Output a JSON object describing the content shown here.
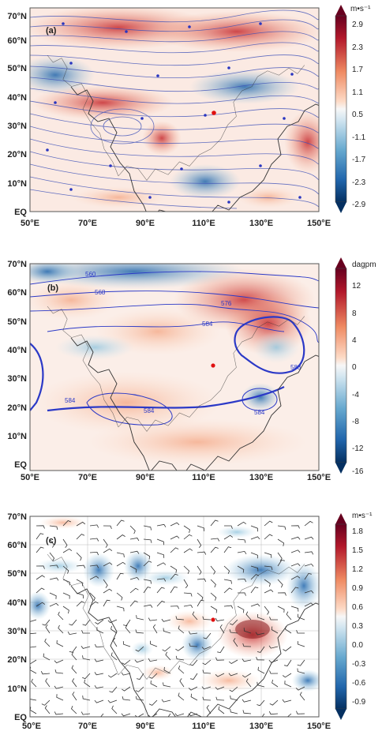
{
  "panels": [
    {
      "label": "(a)",
      "unit": "m•s⁻¹",
      "lat_labels": [
        "70°N",
        "60°N",
        "50°N",
        "40°N",
        "30°N",
        "20°N",
        "10°N",
        "EQ"
      ],
      "lon_labels": [
        "50°E",
        "70°E",
        "90°E",
        "110°E",
        "130°E",
        "150°E"
      ],
      "colorbar_ticks": [
        "2.9",
        "2.3",
        "1.7",
        "1.1",
        "0.5",
        "-1.1",
        "-1.7",
        "-2.3",
        "-2.9"
      ],
      "contour_labels": []
    },
    {
      "label": "(b)",
      "unit": "dagpm",
      "lat_labels": [
        "70°N",
        "60°N",
        "50°N",
        "40°N",
        "30°N",
        "20°N",
        "10°N",
        "EQ"
      ],
      "lon_labels": [
        "50°E",
        "70°E",
        "90°E",
        "110°E",
        "130°E",
        "150°E"
      ],
      "colorbar_ticks": [
        "12",
        "8",
        "4",
        "0",
        "-4",
        "-8",
        "-12",
        "-16"
      ],
      "contour_labels": [
        "560",
        "568",
        "576",
        "584",
        "588",
        "584",
        "584",
        "584"
      ]
    },
    {
      "label": "(c)",
      "unit": "m•s⁻¹",
      "lat_labels": [
        "70°N",
        "60°N",
        "50°N",
        "40°N",
        "30°N",
        "20°N",
        "10°N",
        "EQ"
      ],
      "lon_labels": [
        "50°E",
        "70°E",
        "90°E",
        "110°E",
        "130°E",
        "150°E"
      ],
      "colorbar_ticks": [
        "1.8",
        "1.5",
        "1.2",
        "0.9",
        "0.6",
        "0.3",
        "0.0",
        "-0.3",
        "-0.6",
        "-0.9"
      ],
      "contour_labels": []
    }
  ],
  "colors": {
    "positive_strong": "#8b1a1e",
    "positive_light": "#f4b9a3",
    "negative_strong": "#08306b",
    "negative_light": "#9dcce6",
    "streamline": "#3b4fb8",
    "contour": "#2b39c7",
    "coast": "#333333",
    "marker": "#e01010"
  }
}
